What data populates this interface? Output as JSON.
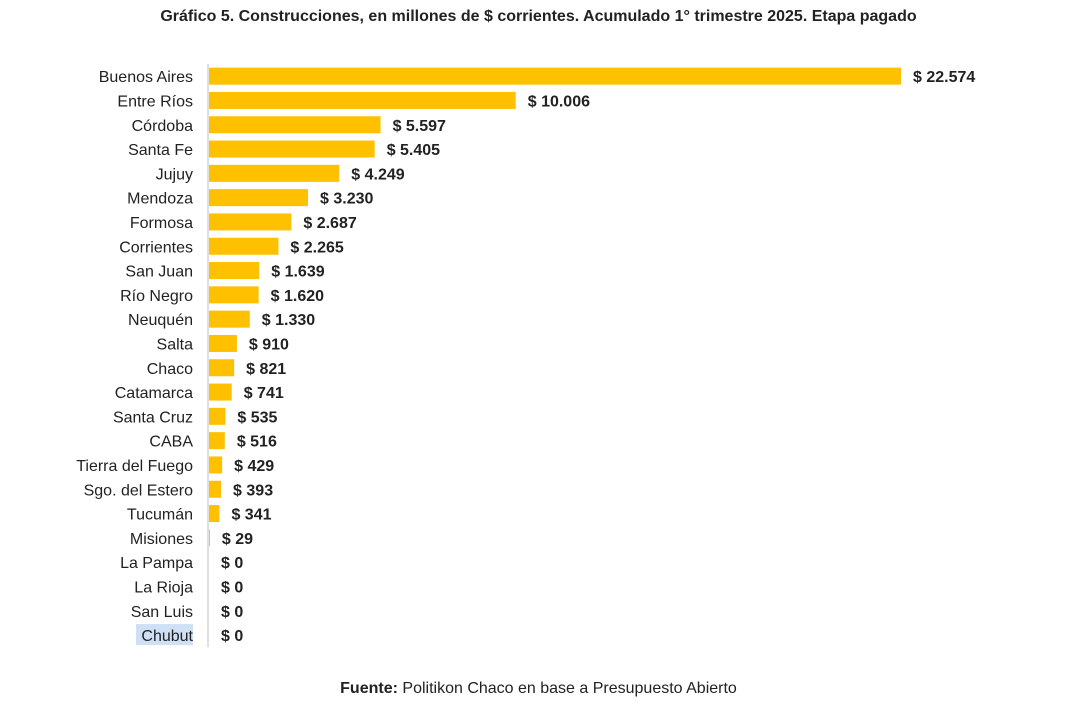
{
  "title": "Gráfico 5. Construcciones, en millones de $ corrientes. Acumulado 1° trimestre 2025. Etapa pagado",
  "source": {
    "prefix": "Fuente:",
    "text": "Politikon Chaco en base a Presupuesto Abierto"
  },
  "highlighted_label": "Chubut",
  "colors": {
    "bar": "#FFC000",
    "axis": "#bfbfbf",
    "highlight": "#cfe0f6"
  },
  "chart_data": {
    "type": "bar",
    "orientation": "horizontal",
    "value_prefix": "$ ",
    "categories": [
      "Buenos Aires",
      "Entre Ríos",
      "Córdoba",
      "Santa Fe",
      "Jujuy",
      "Mendoza",
      "Formosa",
      "Corrientes",
      "San Juan",
      "Río Negro",
      "Neuquén",
      "Salta",
      "Chaco",
      "Catamarca",
      "Santa Cruz",
      "CABA",
      "Tierra del Fuego",
      "Sgo. del Estero",
      "Tucumán",
      "Misiones",
      "La Pampa",
      "La Rioja",
      "San Luis",
      "Chubut"
    ],
    "values": [
      22574,
      10006,
      5597,
      5405,
      4249,
      3230,
      2687,
      2265,
      1639,
      1620,
      1330,
      910,
      821,
      741,
      535,
      516,
      429,
      393,
      341,
      29,
      0,
      0,
      0,
      0
    ],
    "value_labels": [
      "$ 22.574",
      "$ 10.006",
      "$ 5.597",
      "$ 5.405",
      "$ 4.249",
      "$ 3.230",
      "$ 2.687",
      "$ 2.265",
      "$ 1.639",
      "$ 1.620",
      "$ 1.330",
      "$ 910",
      "$ 821",
      "$ 741",
      "$ 535",
      "$ 516",
      "$ 429",
      "$ 393",
      "$ 341",
      "$ 29",
      "$ 0",
      "$ 0",
      "$ 0",
      "$ 0"
    ],
    "grid": false,
    "legend": "none"
  }
}
